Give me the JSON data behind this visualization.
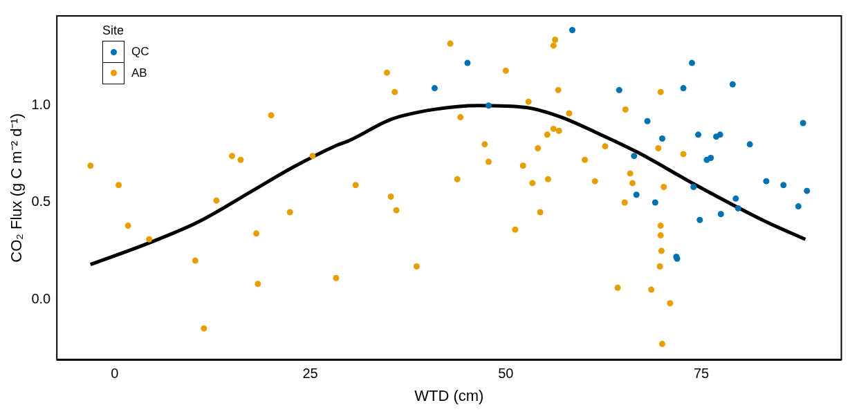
{
  "chart_data": {
    "type": "scatter",
    "xlabel": "WTD (cm)",
    "ylabel": "CO₂ Flux (g C m⁻² d⁻¹)",
    "legend_title": "Site",
    "legend": "top left",
    "grid": false,
    "marker": "circle",
    "xlim": [
      -7.4,
      92.9
    ],
    "ylim": [
      -0.312,
      1.463
    ],
    "xticks": [
      0,
      25,
      50,
      75
    ],
    "yticks": [
      {
        "value": 0,
        "label": "0.0"
      },
      {
        "value": 0.5,
        "label": "0.5"
      },
      {
        "value": 1,
        "label": "1.0"
      }
    ],
    "series": [
      {
        "name": "QC",
        "color": "#0072b2",
        "x": [
          58.5,
          45.1,
          40.9,
          47.8,
          73.8,
          64.5,
          72.7,
          79.0,
          68.1,
          70.0,
          74.6,
          76.9,
          77.4,
          81.2,
          88.0,
          66.4,
          75.7,
          76.2,
          66.7,
          69.1,
          74.0,
          79.4,
          79.7,
          83.3,
          85.5,
          88.5,
          87.4,
          74.8,
          77.5,
          71.8,
          71.9
        ],
        "values": [
          1.39,
          1.22,
          1.09,
          1.0,
          1.22,
          1.08,
          1.09,
          1.11,
          0.92,
          0.83,
          0.85,
          0.84,
          0.85,
          0.8,
          0.91,
          0.74,
          0.72,
          0.73,
          0.54,
          0.5,
          0.58,
          0.52,
          0.47,
          0.61,
          0.59,
          0.56,
          0.48,
          0.41,
          0.44,
          0.22,
          0.21
        ]
      },
      {
        "name": "AB",
        "color": "#e69f00",
        "x": [
          -3.1,
          0.5,
          1.7,
          4.4,
          10.3,
          11.4,
          13.0,
          15.0,
          16.1,
          18.1,
          18.3,
          20.0,
          22.4,
          25.3,
          28.3,
          30.8,
          34.8,
          35.3,
          35.8,
          36.0,
          38.6,
          42.9,
          43.8,
          44.2,
          47.3,
          47.8,
          50.0,
          51.2,
          52.9,
          54.1,
          52.2,
          60.1,
          58.1,
          56.1,
          56.8,
          55.3,
          56.3,
          56.1,
          56.7,
          55.4,
          53.4,
          54.4,
          61.4,
          69.8,
          65.3,
          62.7,
          69.5,
          72.7,
          65.9,
          66.2,
          70.2,
          65.2,
          69.8,
          69.8,
          69.9,
          69.7,
          64.3,
          68.6,
          71.0,
          70.0
        ],
        "values": [
          0.69,
          0.59,
          0.38,
          0.31,
          0.2,
          -0.15,
          0.51,
          0.74,
          0.72,
          0.34,
          0.08,
          0.95,
          0.45,
          0.74,
          0.11,
          0.59,
          1.17,
          0.53,
          1.07,
          0.46,
          0.17,
          1.32,
          0.62,
          0.94,
          0.8,
          0.71,
          1.18,
          0.36,
          1.02,
          0.78,
          0.69,
          0.72,
          0.96,
          0.88,
          0.87,
          0.85,
          1.34,
          1.31,
          1.08,
          0.62,
          0.6,
          0.45,
          0.61,
          1.07,
          0.98,
          0.79,
          0.78,
          0.75,
          0.65,
          0.6,
          0.58,
          0.5,
          0.38,
          0.33,
          0.25,
          0.17,
          0.06,
          0.05,
          -0.02,
          -0.23
        ]
      },
      {
        "type": "line",
        "color": "#000000",
        "marker": "none",
        "x": [
          -3.1,
          4.3,
          10.7,
          17.6,
          22.7,
          28.1,
          30.0,
          35.4,
          40.8,
          46.5,
          52.6,
          57.1,
          61.6,
          66.8,
          74.3,
          83.3,
          88.3
        ],
        "values": [
          0.18,
          0.29,
          0.4,
          0.56,
          0.68,
          0.79,
          0.82,
          0.93,
          0.98,
          1.0,
          0.99,
          0.94,
          0.86,
          0.76,
          0.59,
          0.4,
          0.31
        ]
      }
    ]
  }
}
